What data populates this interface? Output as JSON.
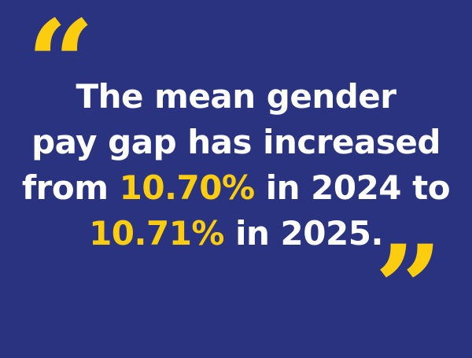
{
  "quote": {
    "open_mark": "“",
    "close_mark": "”",
    "line1": "The mean gender",
    "line2": "pay gap has increased",
    "line3_pre": "from ",
    "value_2024": "10.70%",
    "line3_post": " in 2024 to",
    "value_2025": "10.71%",
    "line4_post": " in 2025."
  },
  "colors": {
    "background": "#293380",
    "accent": "#fccd0e",
    "text": "#ffffff"
  }
}
